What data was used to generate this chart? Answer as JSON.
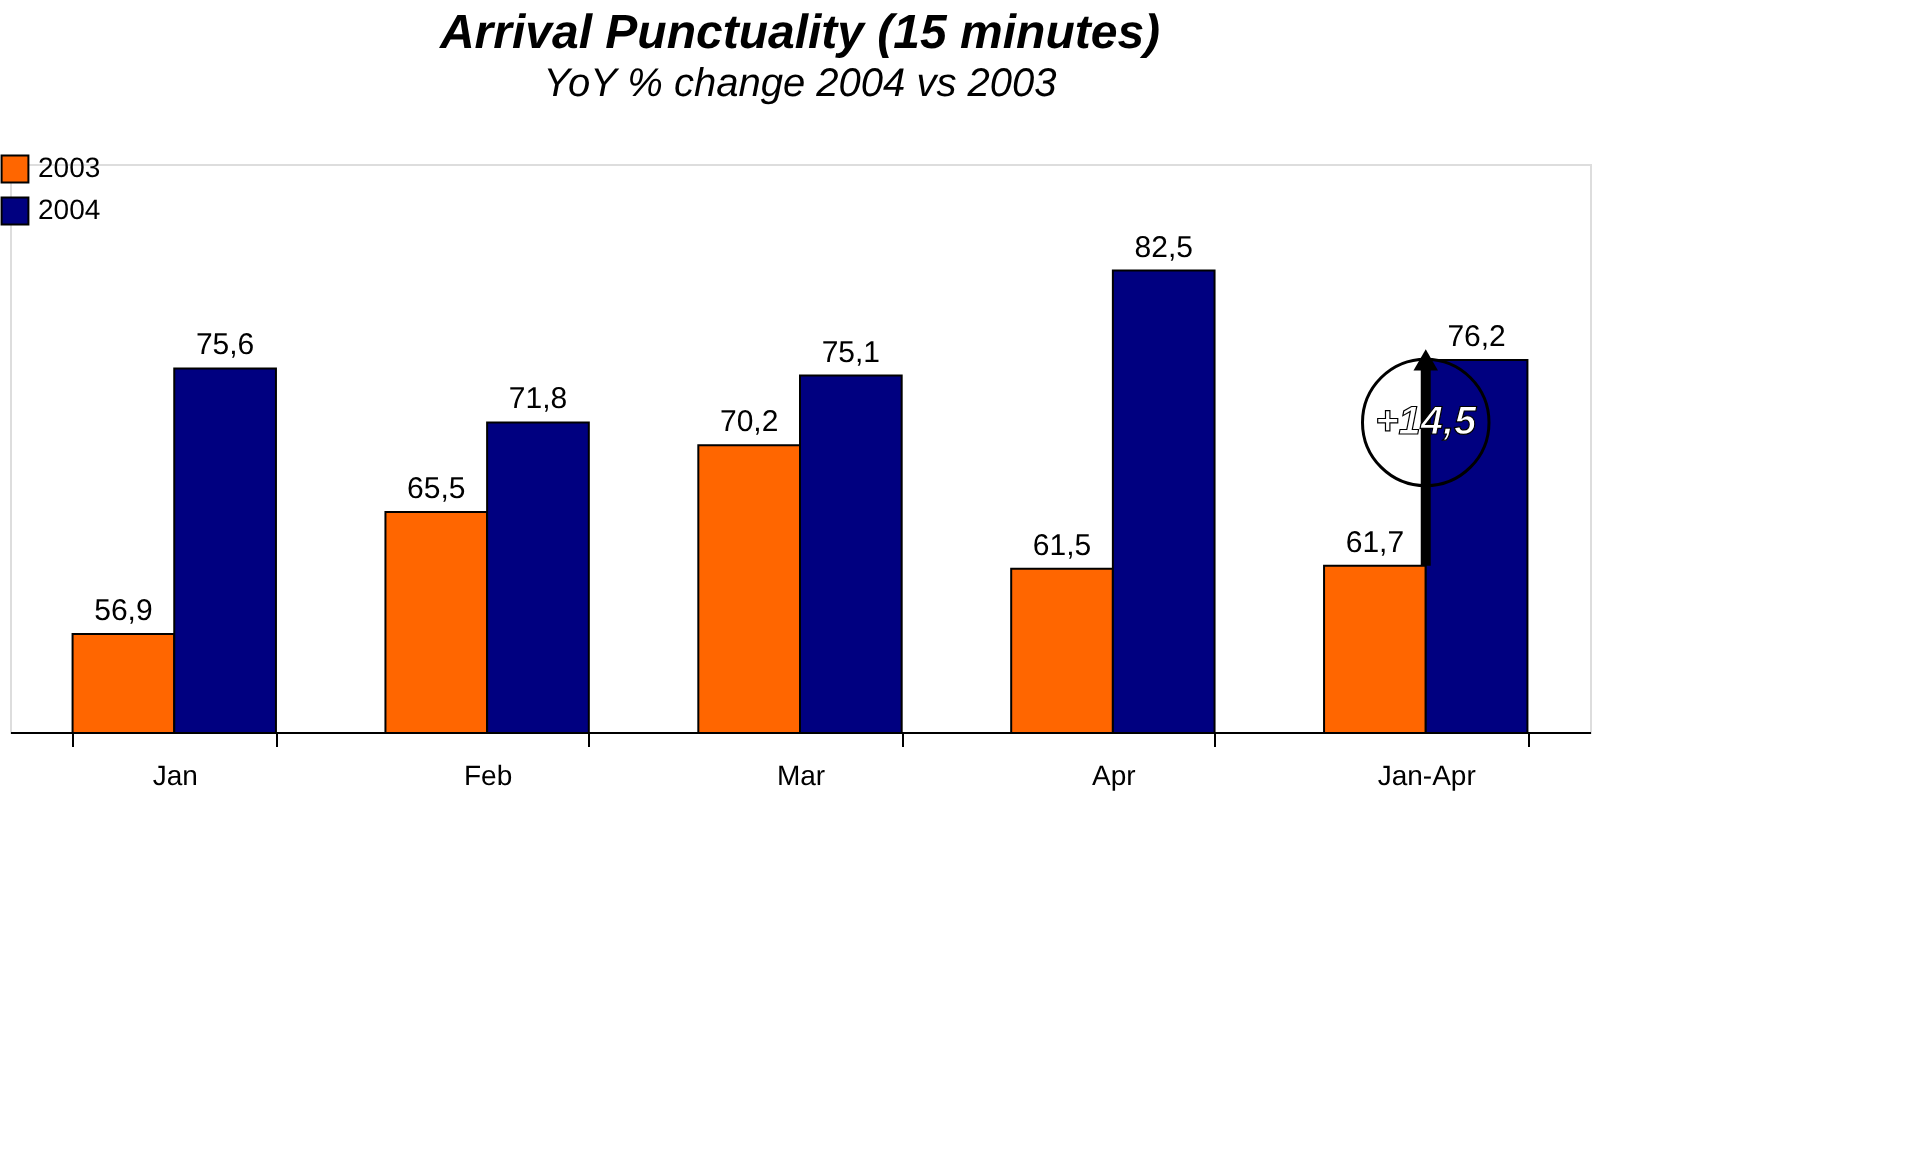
{
  "chart_data": {
    "type": "bar",
    "title": "Arrival Punctuality (15 minutes)",
    "subtitle": "YoY % change 2004 vs 2003",
    "categories": [
      "Jan",
      "Feb",
      "Mar",
      "Apr",
      "Jan-Apr"
    ],
    "series": [
      {
        "name": "2003",
        "color": "#ff6600",
        "values": [
          56.9,
          65.5,
          70.2,
          61.5,
          61.7
        ],
        "value_labels": [
          "56,9",
          "65,5",
          "70,2",
          "61,5",
          "61,7"
        ]
      },
      {
        "name": "2004",
        "color": "#000080",
        "values": [
          75.6,
          71.8,
          75.1,
          82.5,
          76.2
        ],
        "value_labels": [
          "75,6",
          "71,8",
          "75,1",
          "82,5",
          "76,2"
        ]
      }
    ],
    "ylim": [
      50,
      90
    ],
    "tick_labels": "x",
    "grid": false,
    "legend": "top left",
    "annotations": [
      {
        "text": "+14,5",
        "x": "Jan-Apr",
        "y": 71.8
      }
    ]
  }
}
